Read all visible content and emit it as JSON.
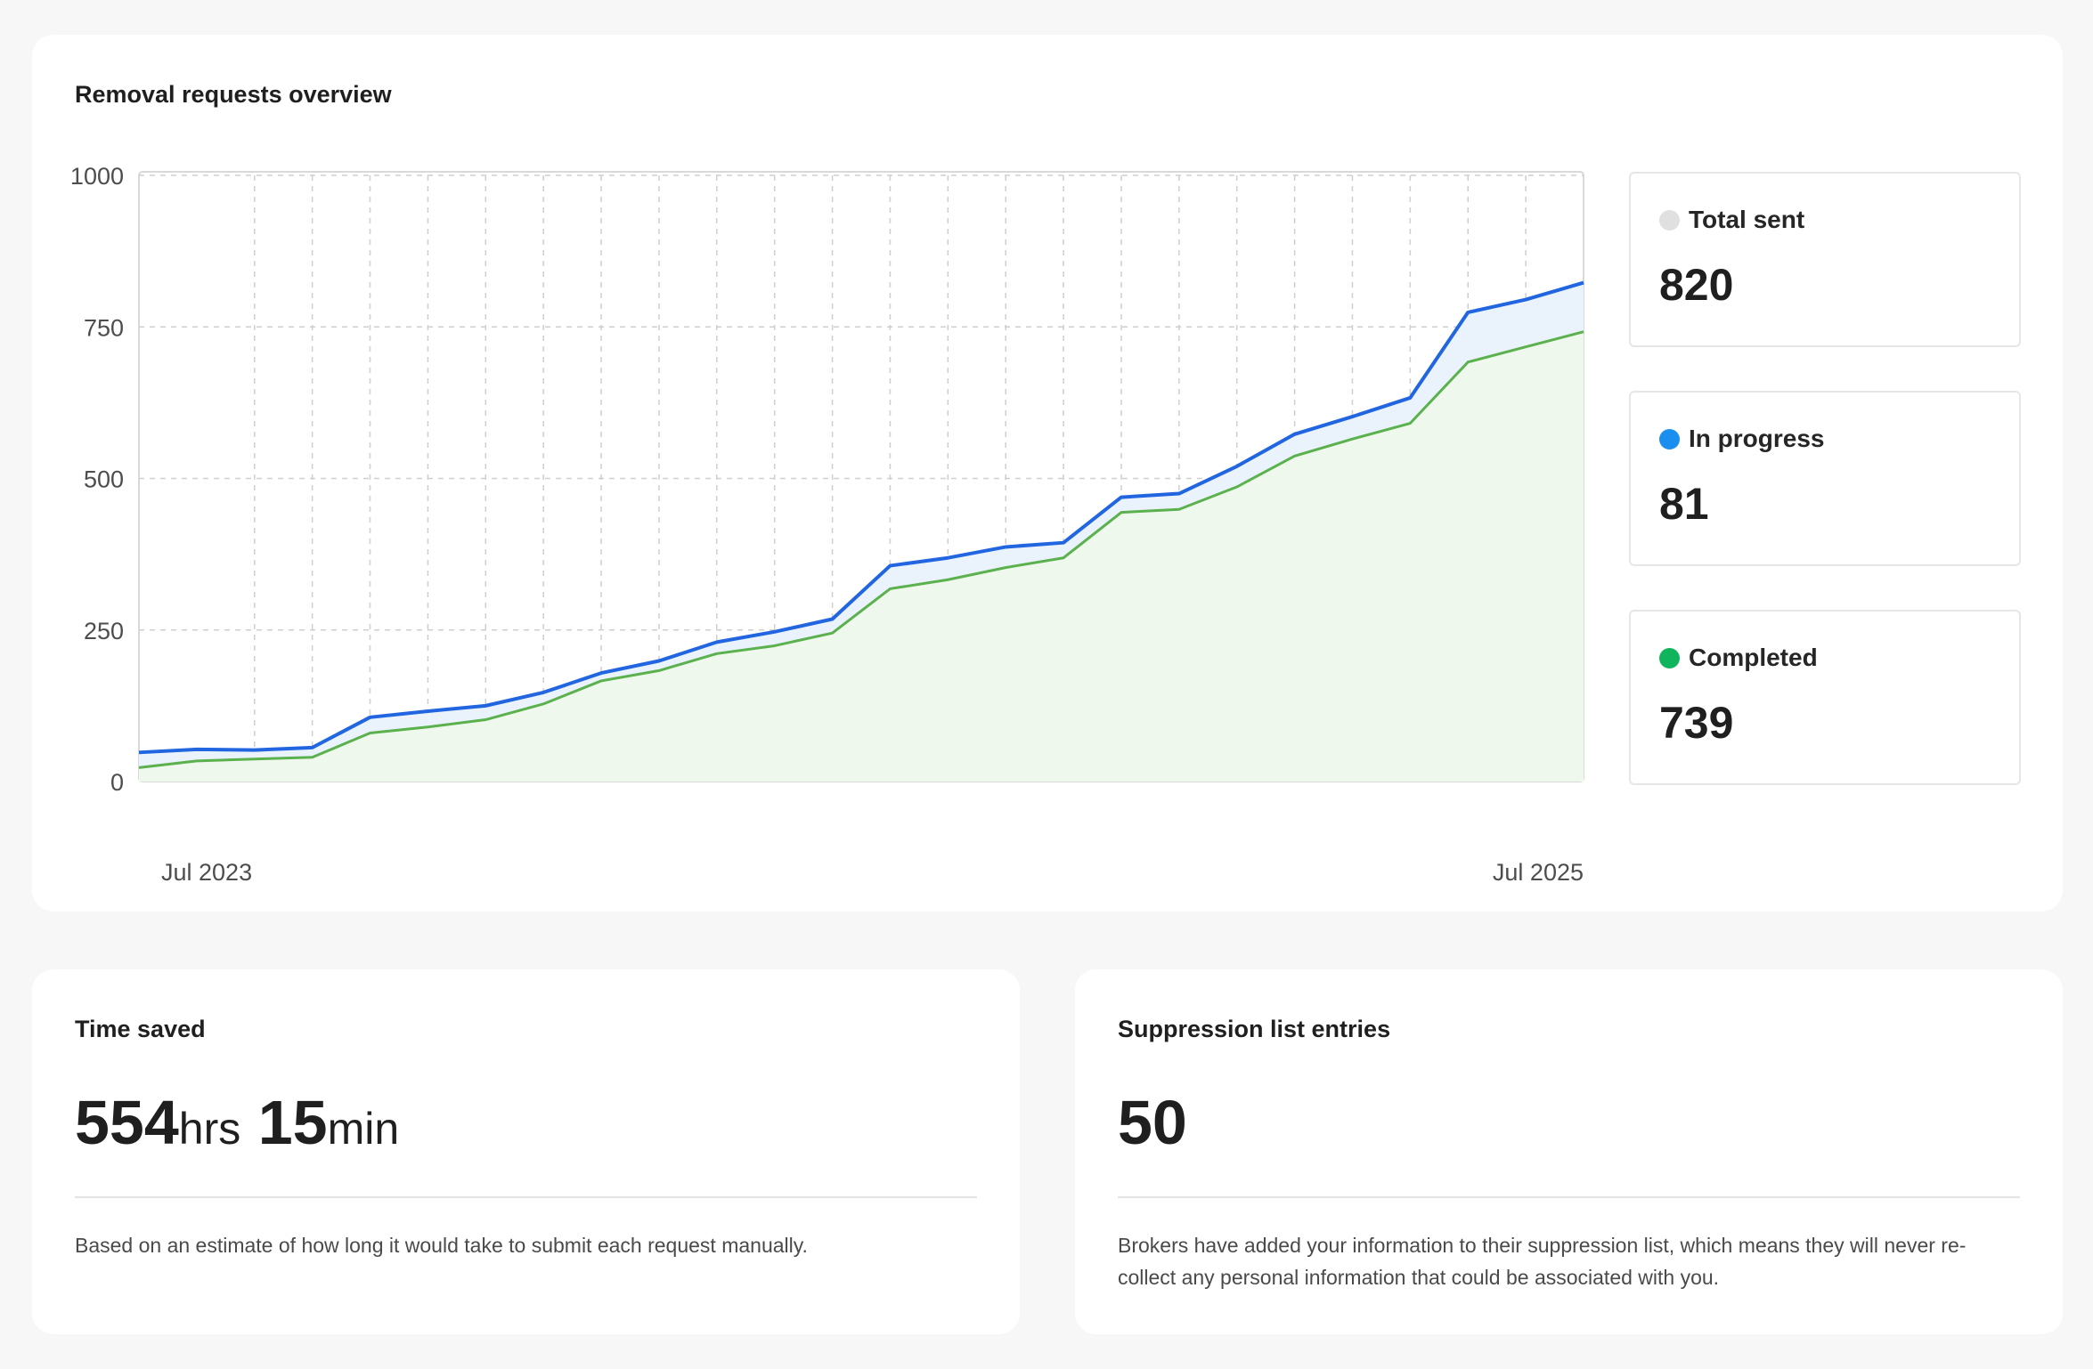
{
  "overview": {
    "title": "Removal requests overview",
    "stats": [
      {
        "label": "Total sent",
        "value": "820",
        "color": "#e0e0e0"
      },
      {
        "label": "In progress",
        "value": "81",
        "color": "#1a8ff0"
      },
      {
        "label": "Completed",
        "value": "739",
        "color": "#10b45c"
      }
    ]
  },
  "chart_data": {
    "type": "area",
    "x_tick_labels": [
      "Jul 2023",
      "Jul 2025"
    ],
    "y_ticks": [
      0,
      250,
      500,
      750,
      1000
    ],
    "ylim": [
      0,
      1000
    ],
    "grid": true,
    "series": [
      {
        "color": "#2166e0",
        "fill": "#eaf3fc",
        "values": [
          48,
          53,
          52,
          56,
          106,
          116,
          125,
          147,
          179,
          199,
          230,
          247,
          268,
          356,
          369,
          387,
          394,
          469,
          475,
          520,
          573,
          602,
          633,
          774,
          795,
          823
        ]
      },
      {
        "color": "#5bb14d",
        "fill": "#eef8ec",
        "values": [
          23,
          34,
          37,
          40,
          80,
          90,
          102,
          128,
          166,
          183,
          211,
          224,
          245,
          318,
          333,
          353,
          369,
          444,
          449,
          486,
          537,
          565,
          591,
          692,
          717,
          742
        ]
      }
    ]
  },
  "time_saved": {
    "title": "Time saved",
    "hours": "554",
    "hours_unit": "hrs",
    "minutes": "15",
    "minutes_unit": "min",
    "note": "Based on an estimate of how long it would take to submit each request manually."
  },
  "suppression": {
    "title": "Suppression list entries",
    "value": "50",
    "note": "Brokers have added your information to their suppression list, which means they will never re-collect any personal information that could be associated with you."
  }
}
